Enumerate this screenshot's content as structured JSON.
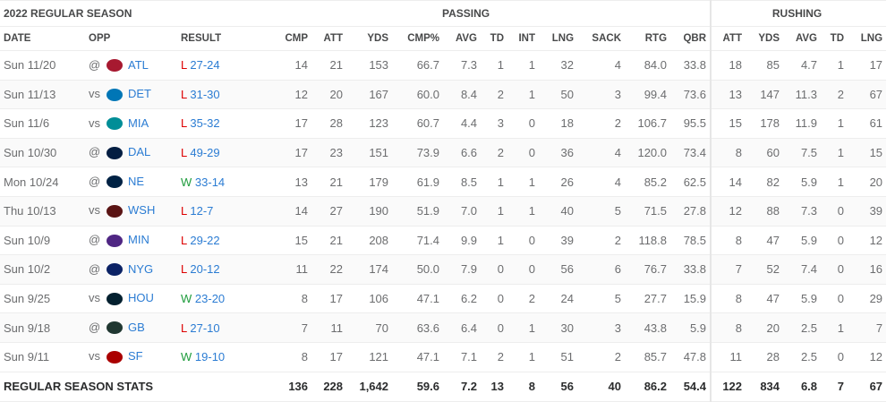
{
  "section_title": "2022 REGULAR SEASON",
  "group_passing": "PASSING",
  "group_rushing": "RUSHING",
  "columns": [
    "DATE",
    "OPP",
    "RESULT",
    "CMP",
    "ATT",
    "YDS",
    "CMP%",
    "AVG",
    "TD",
    "INT",
    "LNG",
    "SACK",
    "RTG",
    "QBR",
    "ATT",
    "YDS",
    "AVG",
    "TD",
    "LNG"
  ],
  "colors": {
    "link": "#2b7cd3",
    "loss": "#dd0000",
    "win": "#1e9c3c"
  },
  "rows": [
    {
      "date": "Sun 11/20",
      "ha": "@",
      "team": "ATL",
      "logo": "falcons-logo",
      "logo_color": "#a71930",
      "wl": "L",
      "score": "27-24",
      "stats": [
        "14",
        "21",
        "153",
        "66.7",
        "7.3",
        "1",
        "1",
        "32",
        "4",
        "84.0",
        "33.8",
        "18",
        "85",
        "4.7",
        "1",
        "17"
      ]
    },
    {
      "date": "Sun 11/13",
      "ha": "vs",
      "team": "DET",
      "logo": "lions-logo",
      "logo_color": "#0076b6",
      "wl": "L",
      "score": "31-30",
      "stats": [
        "12",
        "20",
        "167",
        "60.0",
        "8.4",
        "2",
        "1",
        "50",
        "3",
        "99.4",
        "73.6",
        "13",
        "147",
        "11.3",
        "2",
        "67"
      ]
    },
    {
      "date": "Sun 11/6",
      "ha": "vs",
      "team": "MIA",
      "logo": "dolphins-logo",
      "logo_color": "#008e97",
      "wl": "L",
      "score": "35-32",
      "stats": [
        "17",
        "28",
        "123",
        "60.7",
        "4.4",
        "3",
        "0",
        "18",
        "2",
        "106.7",
        "95.5",
        "15",
        "178",
        "11.9",
        "1",
        "61"
      ]
    },
    {
      "date": "Sun 10/30",
      "ha": "@",
      "team": "DAL",
      "logo": "cowboys-logo",
      "logo_color": "#041e42",
      "wl": "L",
      "score": "49-29",
      "stats": [
        "17",
        "23",
        "151",
        "73.9",
        "6.6",
        "2",
        "0",
        "36",
        "4",
        "120.0",
        "73.4",
        "8",
        "60",
        "7.5",
        "1",
        "15"
      ]
    },
    {
      "date": "Mon 10/24",
      "ha": "@",
      "team": "NE",
      "logo": "patriots-logo",
      "logo_color": "#002244",
      "wl": "W",
      "score": "33-14",
      "stats": [
        "13",
        "21",
        "179",
        "61.9",
        "8.5",
        "1",
        "1",
        "26",
        "4",
        "85.2",
        "62.5",
        "14",
        "82",
        "5.9",
        "1",
        "20"
      ]
    },
    {
      "date": "Thu 10/13",
      "ha": "vs",
      "team": "WSH",
      "logo": "commanders-logo",
      "logo_color": "#5a1414",
      "wl": "L",
      "score": "12-7",
      "stats": [
        "14",
        "27",
        "190",
        "51.9",
        "7.0",
        "1",
        "1",
        "40",
        "5",
        "71.5",
        "27.8",
        "12",
        "88",
        "7.3",
        "0",
        "39"
      ]
    },
    {
      "date": "Sun 10/9",
      "ha": "@",
      "team": "MIN",
      "logo": "vikings-logo",
      "logo_color": "#4f2683",
      "wl": "L",
      "score": "29-22",
      "stats": [
        "15",
        "21",
        "208",
        "71.4",
        "9.9",
        "1",
        "0",
        "39",
        "2",
        "118.8",
        "78.5",
        "8",
        "47",
        "5.9",
        "0",
        "12"
      ]
    },
    {
      "date": "Sun 10/2",
      "ha": "@",
      "team": "NYG",
      "logo": "giants-logo",
      "logo_color": "#0b2265",
      "wl": "L",
      "score": "20-12",
      "stats": [
        "11",
        "22",
        "174",
        "50.0",
        "7.9",
        "0",
        "0",
        "56",
        "6",
        "76.7",
        "33.8",
        "7",
        "52",
        "7.4",
        "0",
        "16"
      ]
    },
    {
      "date": "Sun 9/25",
      "ha": "vs",
      "team": "HOU",
      "logo": "texans-logo",
      "logo_color": "#03202f",
      "wl": "W",
      "score": "23-20",
      "stats": [
        "8",
        "17",
        "106",
        "47.1",
        "6.2",
        "0",
        "2",
        "24",
        "5",
        "27.7",
        "15.9",
        "8",
        "47",
        "5.9",
        "0",
        "29"
      ]
    },
    {
      "date": "Sun 9/18",
      "ha": "@",
      "team": "GB",
      "logo": "packers-logo",
      "logo_color": "#203731",
      "wl": "L",
      "score": "27-10",
      "stats": [
        "7",
        "11",
        "70",
        "63.6",
        "6.4",
        "0",
        "1",
        "30",
        "3",
        "43.8",
        "5.9",
        "8",
        "20",
        "2.5",
        "1",
        "7"
      ]
    },
    {
      "date": "Sun 9/11",
      "ha": "vs",
      "team": "SF",
      "logo": "49ers-logo",
      "logo_color": "#aa0000",
      "wl": "W",
      "score": "19-10",
      "stats": [
        "8",
        "17",
        "121",
        "47.1",
        "7.1",
        "2",
        "1",
        "51",
        "2",
        "85.7",
        "47.8",
        "11",
        "28",
        "2.5",
        "0",
        "12"
      ]
    }
  ],
  "totals": {
    "label": "REGULAR SEASON STATS",
    "stats": [
      "136",
      "228",
      "1,642",
      "59.6",
      "7.2",
      "13",
      "8",
      "56",
      "40",
      "86.2",
      "54.4",
      "122",
      "834",
      "6.8",
      "7",
      "67"
    ]
  }
}
